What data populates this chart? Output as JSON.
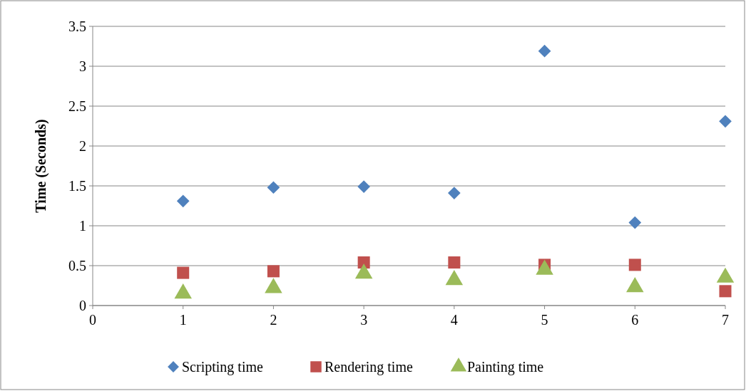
{
  "chart_data": {
    "type": "scatter",
    "ylabel": "Time (Seconds)",
    "x": [
      1,
      2,
      3,
      4,
      5,
      6,
      7
    ],
    "series": [
      {
        "name": "Scripting time",
        "color": "#4f81bd",
        "marker": "diamond",
        "values": [
          1.31,
          1.48,
          1.49,
          1.41,
          3.19,
          1.04,
          2.31
        ]
      },
      {
        "name": "Rendering time",
        "color": "#c0504d",
        "marker": "square",
        "values": [
          0.41,
          0.43,
          0.54,
          0.54,
          0.51,
          0.51,
          0.18
        ]
      },
      {
        "name": "Painting time",
        "color": "#9bbb59",
        "marker": "triangle",
        "values": [
          0.15,
          0.22,
          0.4,
          0.32,
          0.45,
          0.23,
          0.35
        ]
      }
    ],
    "xlim": [
      0,
      7
    ],
    "xticks": [
      0,
      1,
      2,
      3,
      4,
      5,
      6,
      7
    ],
    "ylim": [
      0,
      3.5
    ],
    "yticks": [
      0,
      0.5,
      1,
      1.5,
      2,
      2.5,
      3,
      3.5
    ],
    "grid": "y",
    "legend": "bottom"
  }
}
